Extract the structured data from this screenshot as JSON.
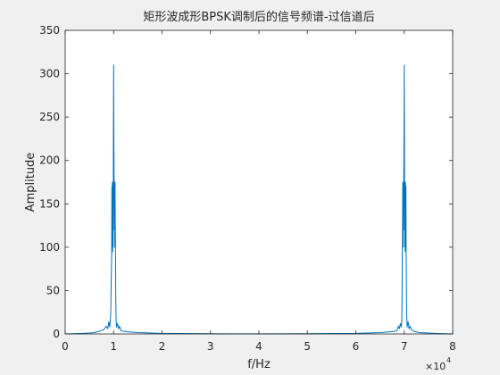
{
  "chart_data": {
    "type": "line",
    "title": "矩形波成形BPSK调制后的信号频谱-过信道后",
    "xlabel": "f/Hz",
    "ylabel": "Amplitude",
    "x_exponent_label": "×10",
    "x_exponent_power": "4",
    "xlim": [
      0,
      8
    ],
    "ylim": [
      0,
      350
    ],
    "xticks": [
      "0",
      "1",
      "2",
      "3",
      "4",
      "5",
      "6",
      "7",
      "8"
    ],
    "yticks": [
      "0",
      "50",
      "100",
      "150",
      "200",
      "250",
      "300",
      "350"
    ],
    "grid": false,
    "line_color": "#0072BD",
    "series": [
      {
        "values": [
          [
            0.0,
            0
          ],
          [
            0.3,
            0.5
          ],
          [
            0.5,
            1
          ],
          [
            0.6,
            1.5
          ],
          [
            0.7,
            3
          ],
          [
            0.8,
            5
          ],
          [
            0.85,
            9
          ],
          [
            0.88,
            6
          ],
          [
            0.9,
            14
          ],
          [
            0.92,
            8
          ],
          [
            0.94,
            22
          ],
          [
            0.95,
            60
          ],
          [
            0.96,
            90
          ],
          [
            0.965,
            170
          ],
          [
            0.97,
            110
          ],
          [
            0.975,
            175
          ],
          [
            0.98,
            95
          ],
          [
            0.985,
            130
          ],
          [
            0.99,
            100
          ],
          [
            0.995,
            200
          ],
          [
            1.0,
            310
          ],
          [
            1.005,
            230
          ],
          [
            1.01,
            180
          ],
          [
            1.015,
            120
          ],
          [
            1.02,
            160
          ],
          [
            1.025,
            100
          ],
          [
            1.03,
            175
          ],
          [
            1.035,
            120
          ],
          [
            1.04,
            90
          ],
          [
            1.045,
            40
          ],
          [
            1.05,
            18
          ],
          [
            1.06,
            8
          ],
          [
            1.08,
            12
          ],
          [
            1.1,
            6
          ],
          [
            1.12,
            9
          ],
          [
            1.15,
            4
          ],
          [
            1.2,
            3
          ],
          [
            1.3,
            2.5
          ],
          [
            1.5,
            1.5
          ],
          [
            2.0,
            0.6
          ],
          [
            3.0,
            0.2
          ],
          [
            4.0,
            0.1
          ],
          [
            5.0,
            0.2
          ],
          [
            6.0,
            0.6
          ],
          [
            6.5,
            1.5
          ],
          [
            6.7,
            2.5
          ],
          [
            6.8,
            3
          ],
          [
            6.85,
            4
          ],
          [
            6.88,
            9
          ],
          [
            6.9,
            6
          ],
          [
            6.92,
            12
          ],
          [
            6.94,
            8
          ],
          [
            6.95,
            18
          ],
          [
            6.955,
            40
          ],
          [
            6.96,
            90
          ],
          [
            6.965,
            120
          ],
          [
            6.97,
            175
          ],
          [
            6.975,
            100
          ],
          [
            6.98,
            160
          ],
          [
            6.985,
            120
          ],
          [
            6.99,
            180
          ],
          [
            6.995,
            230
          ],
          [
            7.0,
            310
          ],
          [
            7.005,
            200
          ],
          [
            7.01,
            100
          ],
          [
            7.015,
            130
          ],
          [
            7.02,
            95
          ],
          [
            7.025,
            175
          ],
          [
            7.03,
            110
          ],
          [
            7.035,
            170
          ],
          [
            7.04,
            90
          ],
          [
            7.045,
            60
          ],
          [
            7.05,
            22
          ],
          [
            7.06,
            8
          ],
          [
            7.08,
            14
          ],
          [
            7.1,
            6
          ],
          [
            7.12,
            9
          ],
          [
            7.15,
            5
          ],
          [
            7.2,
            3
          ],
          [
            7.3,
            1.5
          ],
          [
            7.5,
            1
          ],
          [
            7.7,
            0.5
          ],
          [
            8.0,
            0
          ]
        ]
      }
    ]
  }
}
